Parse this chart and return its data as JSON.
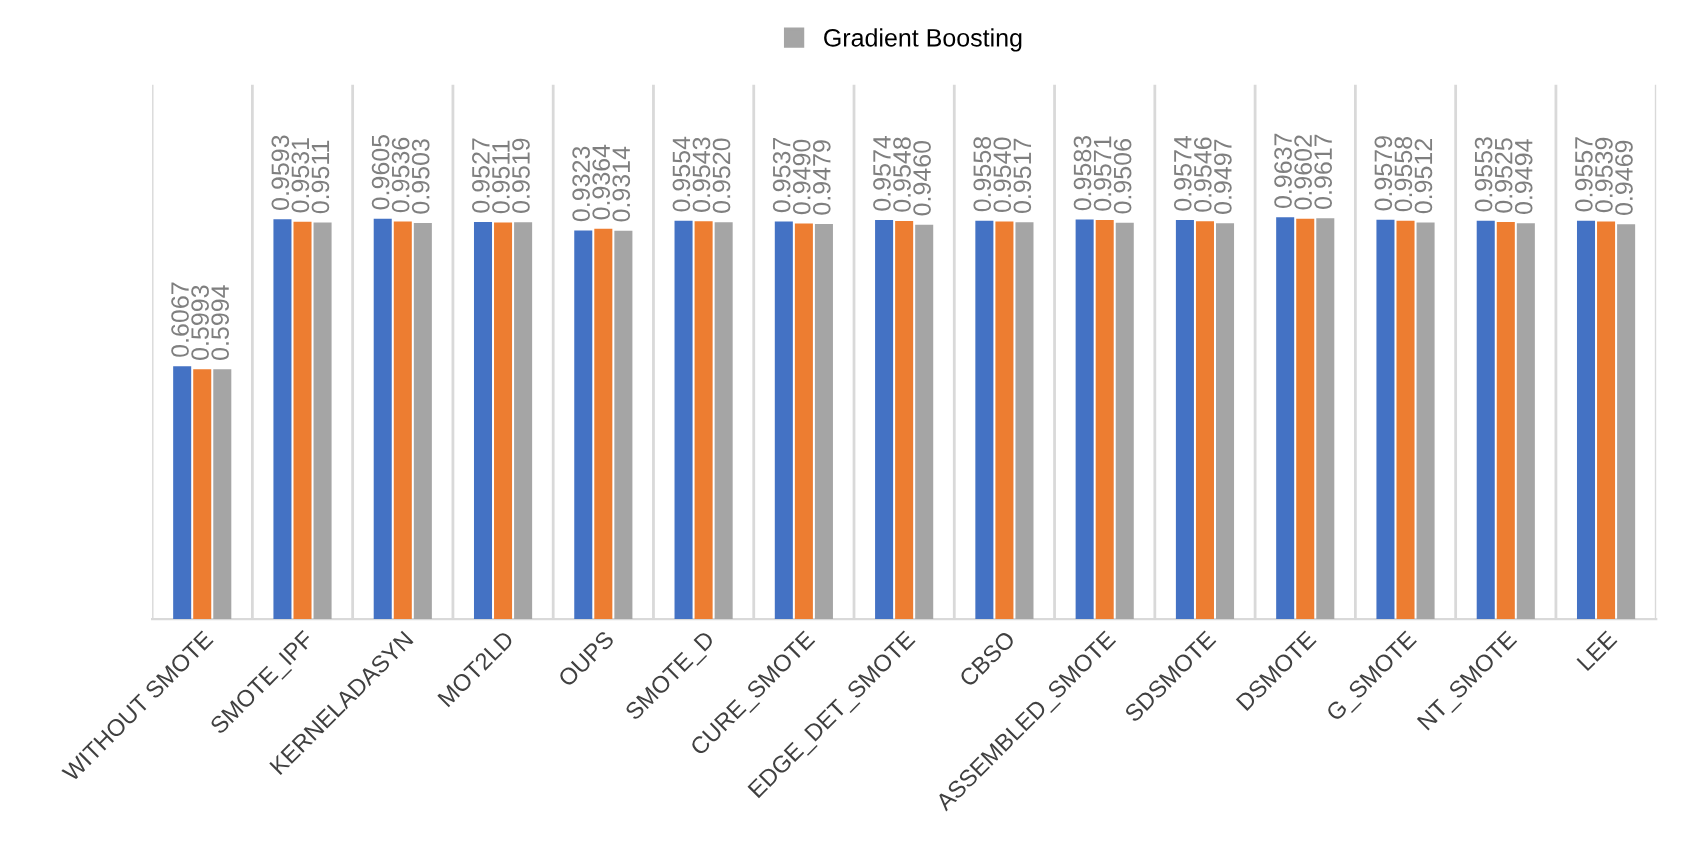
{
  "chart_data": {
    "type": "bar",
    "categories": [
      "WITHOUT SMOTE",
      "SMOTE_IPF",
      "KERNELADASYN",
      "MOT2LD",
      "OUPS",
      "SMOTE_D",
      "CURE_SMOTE",
      "EDGE_DET_SMOTE",
      "CBSO",
      "ASSEMBLED_SMOTE",
      "SDSMOTE",
      "DSMOTE",
      "G_SMOTE",
      "NT_SMOTE",
      "LEE"
    ],
    "series": [
      {
        "color": "#4472c4",
        "values": [
          0.6067,
          0.9593,
          0.9605,
          0.9527,
          0.9323,
          0.9554,
          0.9537,
          0.9574,
          0.9558,
          0.9583,
          0.9574,
          0.9637,
          0.9579,
          0.9553,
          0.9557
        ],
        "value_labels": [
          "0.6067",
          "0.9593",
          "0.9605",
          "0.9527",
          "0.9323",
          "0.9554",
          "0.9537",
          "0.9574",
          "0.9558",
          "0.9583",
          "0.9574",
          "0.9637",
          "0.9579",
          "0.9553",
          "0.9557"
        ]
      },
      {
        "color": "#ed7d31",
        "values": [
          0.5993,
          0.9531,
          0.9536,
          0.9511,
          0.9364,
          0.9543,
          0.949,
          0.9548,
          0.954,
          0.9571,
          0.9546,
          0.9602,
          0.9558,
          0.9525,
          0.9539
        ],
        "value_labels": [
          "0.5993",
          "0.9531",
          "0.9536",
          "0.9511",
          "0.9364",
          "0.9543",
          "0.9490",
          "0.9548",
          "0.9540",
          "0.9571",
          "0.9546",
          "0.9602",
          "0.9558",
          "0.9525",
          "0.9539"
        ]
      },
      {
        "name": "Gradient Boosting",
        "color": "#a5a5a5",
        "values": [
          0.5994,
          0.9511,
          0.9503,
          0.9519,
          0.9314,
          0.952,
          0.9479,
          0.946,
          0.9517,
          0.9506,
          0.9497,
          0.9617,
          0.9512,
          0.9494,
          0.9469
        ],
        "value_labels": [
          "0.5994",
          "0.9511",
          "0.9503",
          "0.9519",
          "0.9314",
          "0.9520",
          "0.9479",
          "0.9460",
          "0.9517",
          "0.9506",
          "0.9497",
          "0.9617",
          "0.9512",
          "0.9494",
          "0.9469"
        ]
      }
    ],
    "legend": "top",
    "grid": "x"
  }
}
